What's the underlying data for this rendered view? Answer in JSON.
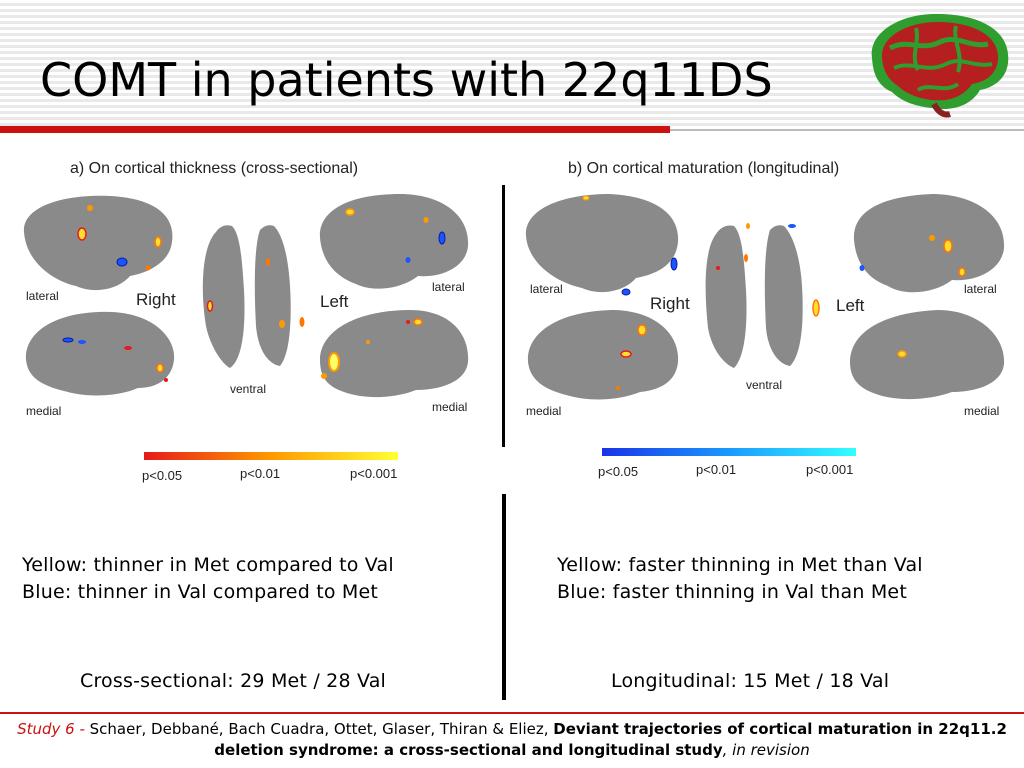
{
  "slide": {
    "title": "COMT in patients with 22q11DS"
  },
  "figure_a": {
    "title": "a) On cortical thickness (cross-sectional)",
    "label_lateral_right": "lateral",
    "label_medial_right": "medial",
    "label_ventral": "ventral",
    "label_lateral_left": "lateral",
    "label_medial_left": "medial",
    "hemisphere_right": "Right",
    "hemisphere_left": "Left",
    "colorbar": {
      "colors": [
        "#e61a1a",
        "#ff9900",
        "#ffff33"
      ],
      "ticks": [
        "p<0.05",
        "p<0.01",
        "p<0.001"
      ]
    }
  },
  "figure_b": {
    "title": "b) On cortical maturation (longitudinal)",
    "label_lateral_right": "lateral",
    "label_medial_right": "medial",
    "label_ventral": "ventral",
    "label_lateral_left": "lateral",
    "label_medial_left": "medial",
    "hemisphere_right": "Right",
    "hemisphere_left": "Left",
    "colorbar": {
      "colors": [
        "#1a33e6",
        "#1a99ff",
        "#33ffff"
      ],
      "ticks": [
        "p<0.05",
        "p<0.01",
        "p<0.001"
      ]
    }
  },
  "left_text": {
    "line1": "Yellow: thinner in Met compared to Val",
    "line2": "Blue: thinner in Val compared to Met",
    "sample": "Cross-sectional: 29 Met / 28 Val"
  },
  "right_text": {
    "line1": "Yellow: faster thinning in Met than Val",
    "line2": "Blue: faster thinning in Val than Met",
    "sample": "Longitudinal: 15 Met / 18 Val"
  },
  "citation": {
    "study": "Study 6 -",
    "authors": " Schaer, Debbané, Bach Cuadra, Ottet, Glaser, Thiran & Eliez, ",
    "paper_title": "Deviant trajectories of cortical maturation in 22q11.2 deletion syndrome: a cross-sectional and longitudinal study",
    "status": ", in revision"
  },
  "colors": {
    "accent_red": "#cc1111",
    "cortex_gray": "#8a8a8a"
  }
}
